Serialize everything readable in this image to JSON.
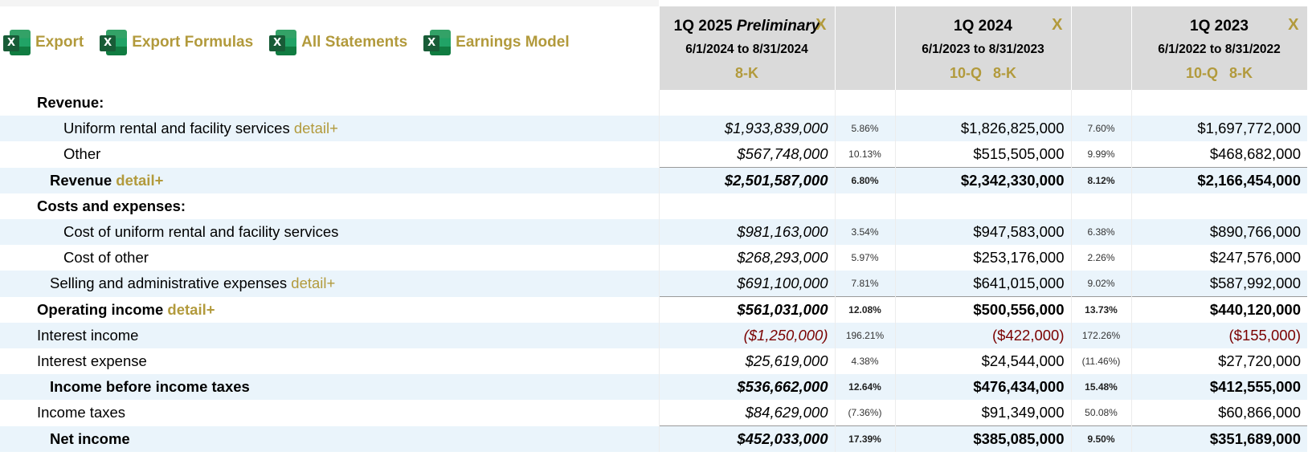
{
  "toolbar": {
    "items": [
      {
        "label": "Export",
        "icon": "excel-icon"
      },
      {
        "label": "Export Formulas",
        "icon": "excel-icon"
      },
      {
        "label": "All Statements",
        "icon": "excel-icon"
      },
      {
        "label": "Earnings Model",
        "icon": "excel-icon"
      }
    ],
    "icon_letter": "X"
  },
  "colors": {
    "accent": "#b29a3c",
    "header_bg": "#dadada",
    "alt_row": "#eaf4fb",
    "negative": "#7a0000"
  },
  "periods": [
    {
      "title": "1Q 2025",
      "title_suffix": "Preliminary",
      "dates": "6/1/2024 to 8/31/2024",
      "filings": [
        "8-K"
      ],
      "close": "X"
    },
    {
      "title": "1Q 2024",
      "title_suffix": "",
      "dates": "6/1/2023 to 8/31/2023",
      "filings": [
        "10-Q",
        "8-K"
      ],
      "close": "X"
    },
    {
      "title": "1Q 2023",
      "title_suffix": "",
      "dates": "6/1/2022 to 8/31/2022",
      "filings": [
        "10-Q",
        "8-K"
      ],
      "close": "X"
    }
  ],
  "detail_link": "detail+",
  "rows": [
    {
      "label": "Revenue:",
      "style": "section",
      "values": [
        "",
        "",
        "",
        "",
        ""
      ]
    },
    {
      "label": "Uniform rental and facility services",
      "detail": true,
      "style": "ind2",
      "values": [
        "$1,933,839,000",
        "5.86%",
        "$1,826,825,000",
        "7.60%",
        "$1,697,772,000"
      ]
    },
    {
      "label": "Other",
      "style": "ind2",
      "values": [
        "$567,748,000",
        "10.13%",
        "$515,505,000",
        "9.99%",
        "$468,682,000"
      ]
    },
    {
      "label": "Revenue",
      "detail": true,
      "style": "total",
      "values": [
        "$2,501,587,000",
        "6.80%",
        "$2,342,330,000",
        "8.12%",
        "$2,166,454,000"
      ]
    },
    {
      "label": "Costs and expenses:",
      "style": "section",
      "values": [
        "",
        "",
        "",
        "",
        ""
      ]
    },
    {
      "label": "Cost of uniform rental and facility services",
      "style": "ind2",
      "values": [
        "$981,163,000",
        "3.54%",
        "$947,583,000",
        "6.38%",
        "$890,766,000"
      ]
    },
    {
      "label": "Cost of other",
      "style": "ind2",
      "values": [
        "$268,293,000",
        "5.97%",
        "$253,176,000",
        "2.26%",
        "$247,576,000"
      ]
    },
    {
      "label": "Selling and administrative expenses",
      "detail": true,
      "style": "ind1",
      "values": [
        "$691,100,000",
        "7.81%",
        "$641,015,000",
        "9.02%",
        "$587,992,000"
      ]
    },
    {
      "label": "Operating income",
      "detail": true,
      "style": "op",
      "values": [
        "$561,031,000",
        "12.08%",
        "$500,556,000",
        "13.73%",
        "$440,120,000"
      ]
    },
    {
      "label": "Interest income",
      "style": "plain",
      "negative": true,
      "values": [
        "($1,250,000)",
        "196.21%",
        "($422,000)",
        "172.26%",
        "($155,000)"
      ]
    },
    {
      "label": "Interest expense",
      "style": "plain",
      "values": [
        "$25,619,000",
        "4.38%",
        "$24,544,000",
        "(11.46%)",
        "$27,720,000"
      ]
    },
    {
      "label": "Income before income taxes",
      "style": "subtotal",
      "values": [
        "$536,662,000",
        "12.64%",
        "$476,434,000",
        "15.48%",
        "$412,555,000"
      ]
    },
    {
      "label": "Income taxes",
      "style": "plain",
      "values": [
        "$84,629,000",
        "(7.36%)",
        "$91,349,000",
        "50.08%",
        "$60,866,000"
      ]
    },
    {
      "label": "Net income",
      "style": "total",
      "values": [
        "$452,033,000",
        "17.39%",
        "$385,085,000",
        "9.50%",
        "$351,689,000"
      ]
    }
  ]
}
